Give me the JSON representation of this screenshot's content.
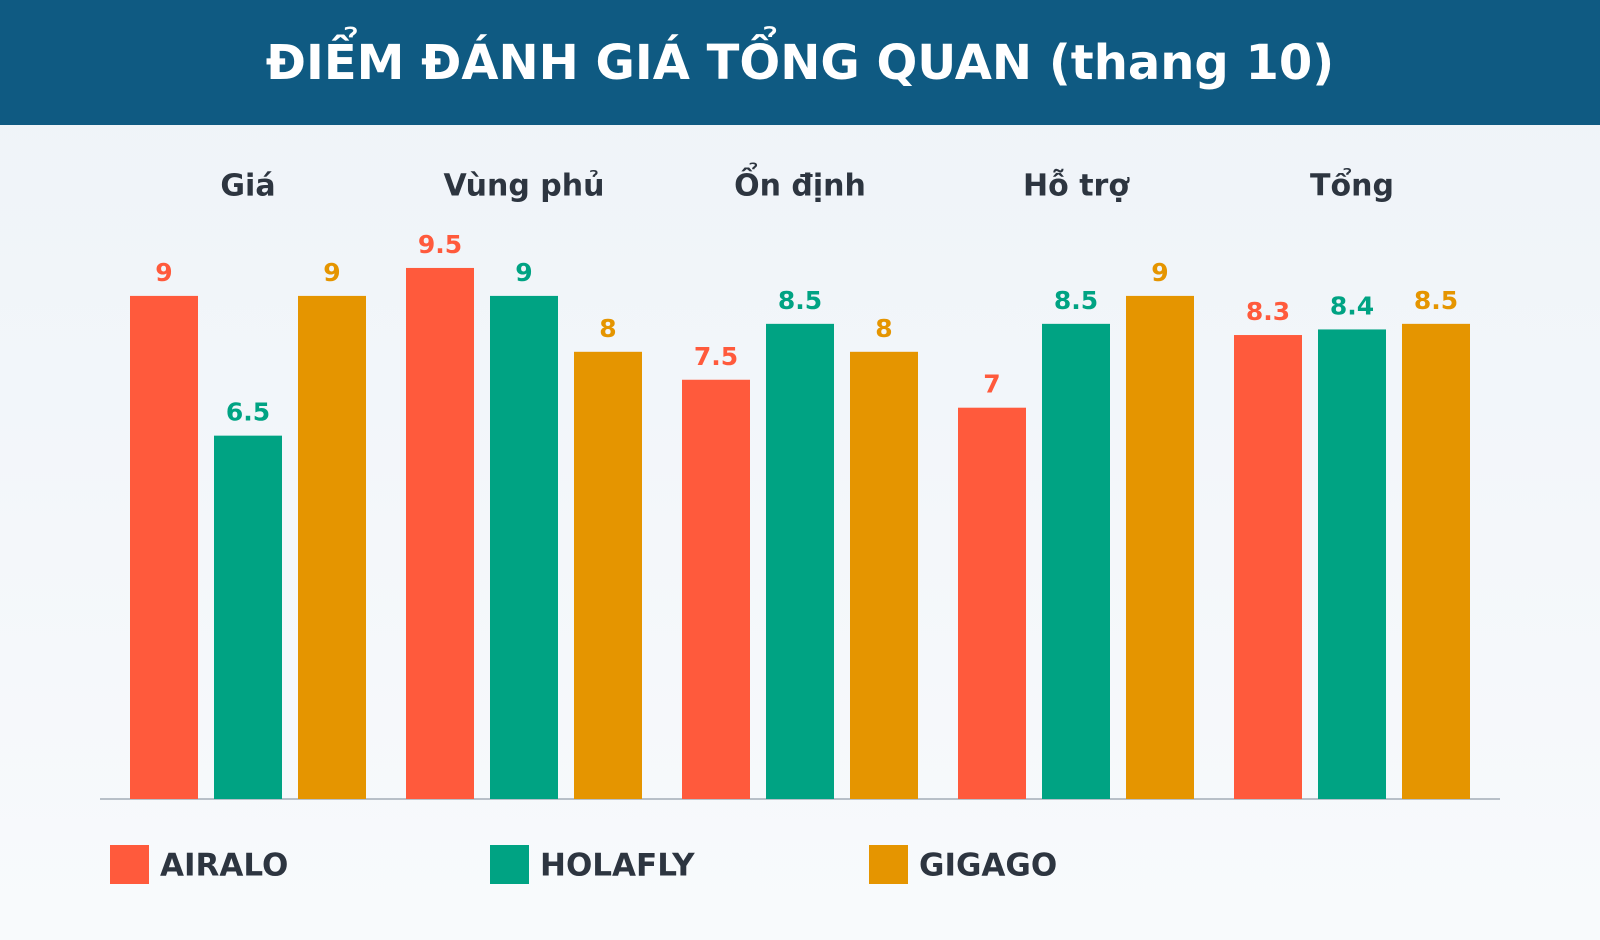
{
  "chart_data": {
    "type": "bar",
    "title": "ĐIỂM ĐÁNH GIÁ TỔNG QUAN (thang 10)",
    "categories": [
      "Giá",
      "Vùng phủ",
      "Ổn định",
      "Hỗ trợ",
      "Tổng"
    ],
    "series": [
      {
        "name": "AIRALO",
        "color": "#ff5a3c",
        "values": [
          9,
          9.5,
          7.5,
          7,
          8.3
        ]
      },
      {
        "name": "HOLAFLY",
        "color": "#00a383",
        "values": [
          6.5,
          9,
          8.5,
          8.5,
          8.4
        ]
      },
      {
        "name": "GIGAGO",
        "color": "#e59500",
        "values": [
          9,
          8,
          8,
          9,
          8.5
        ]
      }
    ],
    "ylim": [
      0,
      10
    ],
    "legend": "bottom"
  }
}
